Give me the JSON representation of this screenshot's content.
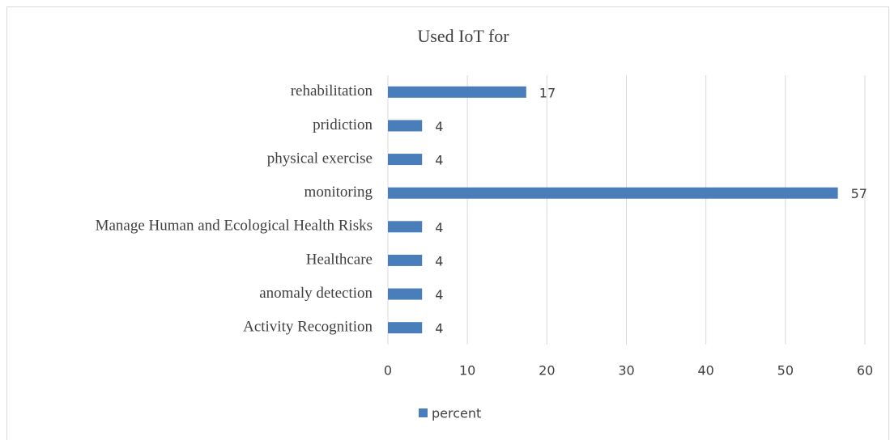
{
  "chart_data": {
    "type": "bar",
    "orientation": "horizontal",
    "title": "Used IoT for",
    "categories": [
      "Activity Recognition",
      "anomaly detection",
      "Healthcare",
      "Manage Human and Ecological Health Risks",
      "monitoring",
      "physical exercise",
      "pridiction",
      "rehabilitation"
    ],
    "series": [
      {
        "name": "percent",
        "color": "#4a7ebb",
        "values": [
          4.3,
          4.3,
          4.3,
          4.3,
          56.6,
          4.3,
          4.3,
          17.4
        ],
        "value_labels": [
          "4",
          "4",
          "4",
          "4",
          "57",
          "4",
          "4",
          "17"
        ]
      }
    ],
    "xlim": [
      0,
      60
    ],
    "xticks": [
      0,
      10,
      20,
      30,
      40,
      50,
      60
    ],
    "grid": true,
    "legend": "bottom"
  }
}
